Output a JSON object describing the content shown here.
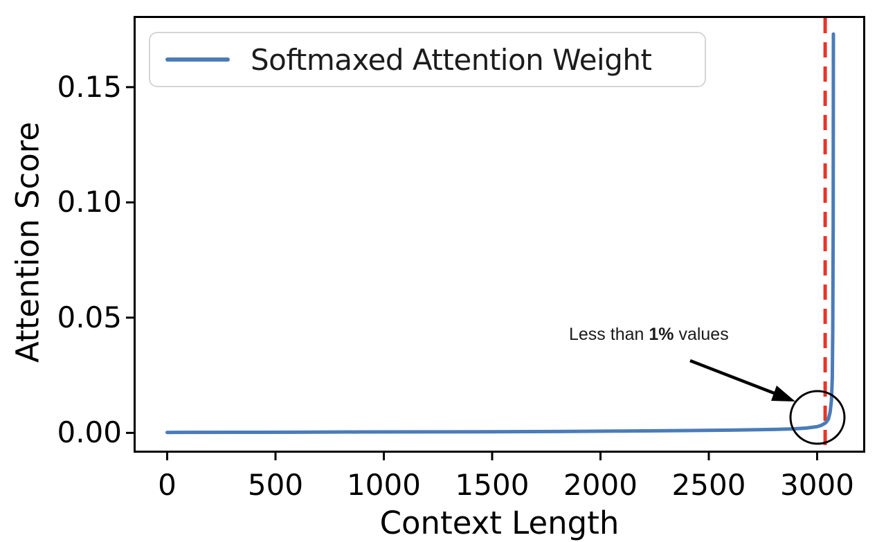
{
  "colors": {
    "series": "#4a7cb8",
    "vline": "#e6352a",
    "frame": "#000000",
    "legend_border": "#d5d5d5",
    "annotation_ink": "#000000"
  },
  "chart_data": {
    "type": "line",
    "title": "",
    "xlabel": "Context Length",
    "ylabel": "Attention Score",
    "xlim": [
      -155,
      3222
    ],
    "ylim": [
      -0.0086,
      0.1809
    ],
    "x_ticks": [
      0,
      500,
      1000,
      1500,
      2000,
      2500,
      3000
    ],
    "y_ticks": [
      0,
      0.05,
      0.1,
      0.15
    ],
    "grid": false,
    "legend": {
      "position": "upper-left",
      "entries": [
        {
          "label": "Softmaxed Attention Weight",
          "color": "#4a7cb8"
        }
      ]
    },
    "series": [
      {
        "name": "Softmaxed Attention Weight",
        "color": "#4a7cb8",
        "points": [
          [
            0,
            0.0002
          ],
          [
            300,
            0.00025
          ],
          [
            600,
            0.0003
          ],
          [
            900,
            0.0004
          ],
          [
            1200,
            0.00045
          ],
          [
            1500,
            0.0005
          ],
          [
            1800,
            0.0006
          ],
          [
            2100,
            0.0008
          ],
          [
            2400,
            0.001
          ],
          [
            2600,
            0.0012
          ],
          [
            2800,
            0.0015
          ],
          [
            2900,
            0.0018
          ],
          [
            2950,
            0.0021
          ],
          [
            3000,
            0.0027
          ],
          [
            3020,
            0.0033
          ],
          [
            3040,
            0.0044
          ],
          [
            3052,
            0.006
          ],
          [
            3060,
            0.009
          ],
          [
            3066,
            0.014
          ],
          [
            3070,
            0.024
          ],
          [
            3072,
            0.045
          ],
          [
            3074,
            0.09
          ],
          [
            3075,
            0.173
          ]
        ]
      }
    ],
    "vline": {
      "x": 3037,
      "color": "#e6352a",
      "style": "dashed"
    },
    "annotation": {
      "prefix": "Less than ",
      "bold": "1%",
      "suffix": " values",
      "has_arrow": true,
      "has_circle": true
    }
  }
}
